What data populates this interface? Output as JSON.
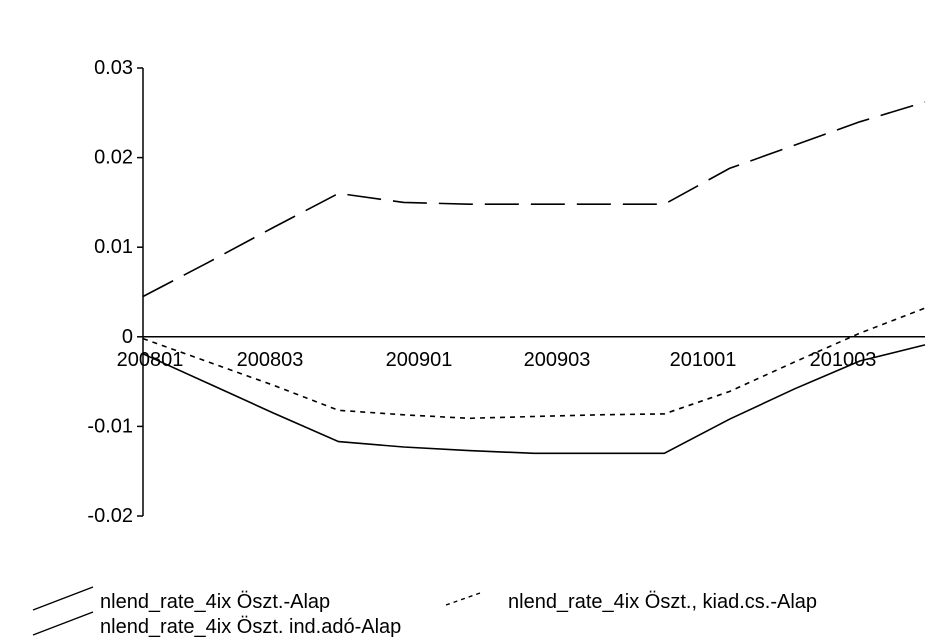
{
  "chart_data": {
    "type": "line",
    "categories": [
      "200801",
      "200803",
      "200901",
      "200903",
      "201001",
      "201003"
    ],
    "x": [
      0,
      1,
      2,
      3,
      4,
      5,
      6,
      7,
      8,
      9,
      10,
      11,
      12
    ],
    "series": [
      {
        "name": "nlend_rate_4ix Öszt.-Alap",
        "style": "long-dash",
        "color": "#000000",
        "values": [
          0.0045,
          0.0083,
          0.0122,
          0.016,
          0.015,
          0.0148,
          0.0148,
          0.0148,
          0.0148,
          0.0188,
          0.0214,
          0.024,
          0.0262
        ]
      },
      {
        "name": "nlend_rate_4ix Öszt., kiad.cs.-Alap",
        "style": "dotted",
        "color": "#000000",
        "values": [
          -0.0002,
          -0.0028,
          -0.0054,
          -0.0082,
          -0.0087,
          -0.0091,
          -0.0089,
          -0.0087,
          -0.0086,
          -0.0061,
          -0.0028,
          0.0004,
          0.0032
        ]
      },
      {
        "name": "nlend_rate_4ix Öszt. ind.adó-Alap",
        "style": "solid",
        "color": "#000000",
        "values": [
          -0.0019,
          -0.0052,
          -0.0085,
          -0.0117,
          -0.0123,
          -0.0127,
          -0.013,
          -0.013,
          -0.013,
          -0.0092,
          -0.0058,
          -0.0027,
          -0.0009
        ]
      }
    ],
    "ylim": [
      -0.02,
      0.03
    ],
    "yticks": [
      "0.03",
      "0.02",
      "0.01",
      "0",
      "-0.01",
      "-0.02"
    ],
    "title": "",
    "xlabel": "",
    "ylabel": "",
    "grid": false,
    "legend_placement": "bottom-left"
  }
}
